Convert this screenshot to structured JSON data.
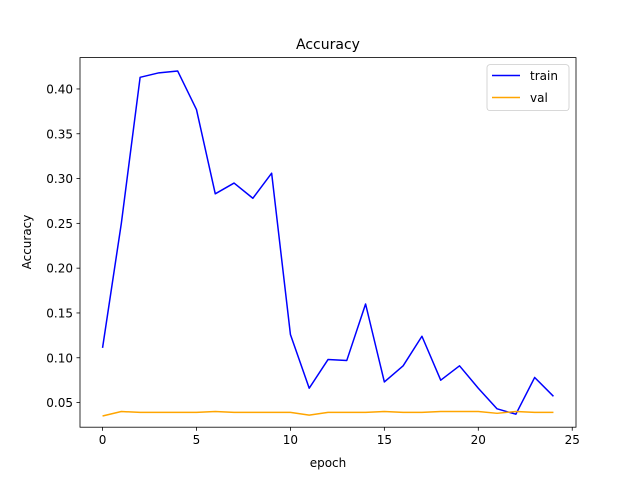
{
  "chart_data": {
    "type": "line",
    "title": "Accuracy",
    "xlabel": "epoch",
    "ylabel": "Accuracy",
    "xlim": [
      -1.2,
      25.2
    ],
    "ylim": [
      0.0225,
      0.435
    ],
    "xticks": [
      0,
      5,
      10,
      15,
      20,
      25
    ],
    "yticks": [
      0.05,
      0.1,
      0.15,
      0.2,
      0.25,
      0.3,
      0.35,
      0.4
    ],
    "xtick_labels": [
      "0",
      "5",
      "10",
      "15",
      "20",
      "25"
    ],
    "ytick_labels": [
      "0.05",
      "0.10",
      "0.15",
      "0.20",
      "0.25",
      "0.30",
      "0.35",
      "0.40"
    ],
    "grid": false,
    "legend_position": "top-right",
    "x": [
      0,
      1,
      2,
      3,
      4,
      5,
      6,
      7,
      8,
      9,
      10,
      11,
      12,
      13,
      14,
      15,
      16,
      17,
      18,
      19,
      20,
      21,
      22,
      23,
      24
    ],
    "series": [
      {
        "name": "train",
        "color": "#0000ff",
        "values": [
          0.111,
          0.25,
          0.413,
          0.418,
          0.42,
          0.377,
          0.283,
          0.295,
          0.278,
          0.306,
          0.126,
          0.066,
          0.098,
          0.097,
          0.16,
          0.073,
          0.091,
          0.124,
          0.075,
          0.091,
          0.066,
          0.043,
          0.037,
          0.078,
          0.057
        ]
      },
      {
        "name": "val",
        "color": "#ffa500",
        "values": [
          0.035,
          0.04,
          0.039,
          0.039,
          0.039,
          0.039,
          0.04,
          0.039,
          0.039,
          0.039,
          0.039,
          0.036,
          0.039,
          0.039,
          0.039,
          0.04,
          0.039,
          0.039,
          0.04,
          0.04,
          0.04,
          0.038,
          0.04,
          0.039,
          0.039
        ]
      }
    ]
  }
}
